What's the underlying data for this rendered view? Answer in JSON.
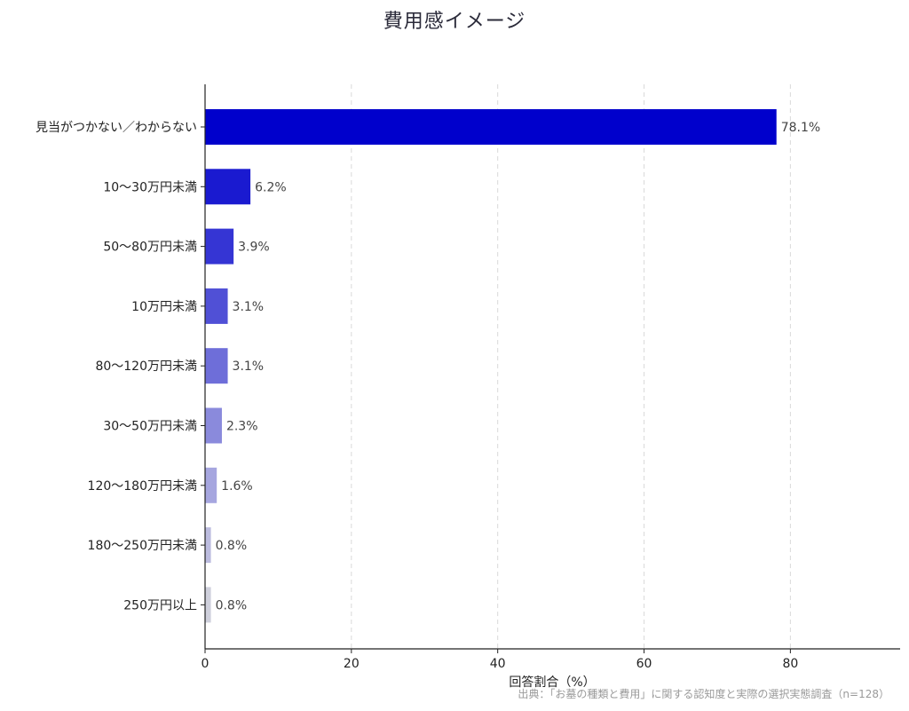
{
  "chart_data": {
    "type": "bar",
    "orientation": "horizontal",
    "title": "費用感イメージ",
    "xlabel": "回答割合（%）",
    "ylabel": "",
    "xlim": [
      0,
      95
    ],
    "xticks": [
      0,
      20,
      40,
      60,
      80
    ],
    "grid": "vertical-dashed",
    "categories": [
      "見当がつかない／わからない",
      "10～30万円未満",
      "50～80万円未満",
      "10万円未満",
      "80～120万円未満",
      "30～50万円未満",
      "120～180万円未満",
      "180～250万円未満",
      "250万円以上"
    ],
    "values": [
      78.1,
      6.2,
      3.9,
      3.1,
      3.1,
      2.3,
      1.6,
      0.8,
      0.8
    ],
    "value_labels": [
      "78.1%",
      "6.2%",
      "3.9%",
      "3.1%",
      "3.1%",
      "2.3%",
      "1.6%",
      "0.8%",
      "0.8%"
    ],
    "colors": [
      "#0000cc",
      "#1a1ad0",
      "#3535d4",
      "#5050d6",
      "#6e6ed9",
      "#8a8adc",
      "#a6a6df",
      "#bcbcdf",
      "#cfd0dc"
    ]
  },
  "footer_note": "出典：「お墓の種類と費用」に関する認知度と実際の選択実態調査（n=128）"
}
